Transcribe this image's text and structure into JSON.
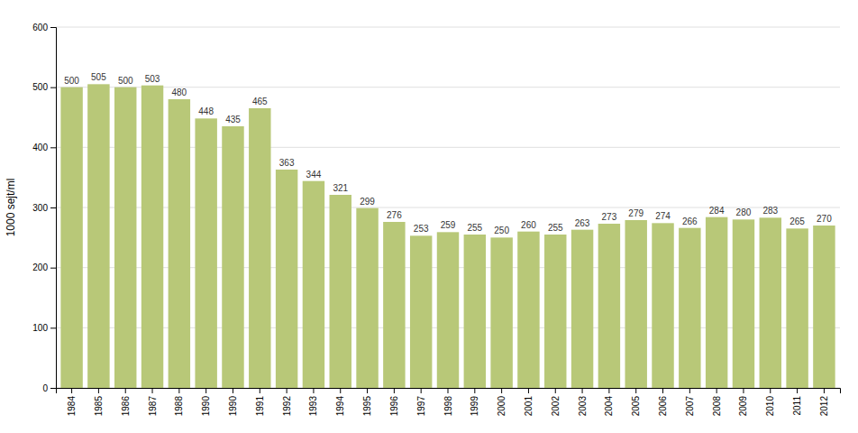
{
  "chart_data": {
    "type": "bar",
    "ylabel": "1000 sejt/ml",
    "categories": [
      "1984",
      "1985",
      "1986",
      "1987",
      "1988",
      "1990",
      "1990",
      "1991",
      "1992",
      "1993",
      "1994",
      "1995",
      "1996",
      "1997",
      "1998",
      "1999",
      "2000",
      "2001",
      "2002",
      "2003",
      "2004",
      "2005",
      "2006",
      "2007",
      "2008",
      "2009",
      "2010",
      "2011",
      "2012"
    ],
    "values": [
      500,
      505,
      500,
      503,
      480,
      448,
      435,
      465,
      363,
      344,
      321,
      299,
      276,
      253,
      259,
      255,
      250,
      260,
      255,
      263,
      273,
      279,
      274,
      266,
      284,
      280,
      283,
      265,
      270
    ],
    "color": "#b8c878",
    "ylim": [
      0,
      600
    ],
    "yticks": [
      0,
      100,
      200,
      300,
      400,
      500,
      600
    ],
    "grid": true,
    "data_labels": true
  }
}
